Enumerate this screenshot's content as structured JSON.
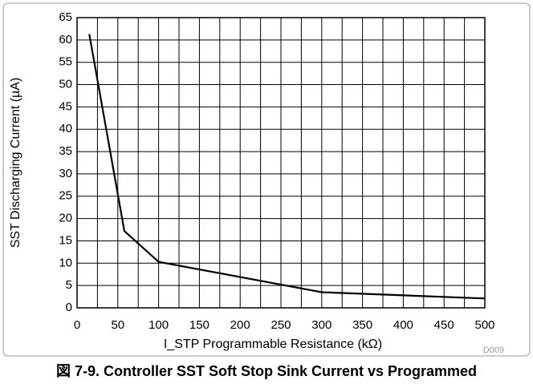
{
  "chart_data": {
    "type": "line",
    "caption": "図 7-9. Controller SST Soft Stop Sink Current vs Programmed",
    "xlabel": "I_STP Programmable Resistance (kΩ)",
    "ylabel": "SST Discharging Current (µA)",
    "code": "D009",
    "x": [
      15,
      58,
      100,
      300,
      500
    ],
    "series": [
      {
        "color": "#000000",
        "values": [
          61.3,
          17.2,
          10.3,
          3.5,
          2.1
        ]
      }
    ],
    "xlim": [
      0,
      500
    ],
    "ylim": [
      0,
      65
    ],
    "xticks": [
      0,
      50,
      100,
      150,
      200,
      250,
      300,
      350,
      400,
      450,
      500
    ],
    "yticks": [
      0,
      5,
      10,
      15,
      20,
      25,
      30,
      35,
      40,
      45,
      50,
      55,
      60,
      65
    ],
    "xgrid_lines": [
      25,
      75,
      125,
      175,
      225,
      275,
      325,
      375,
      425,
      475
    ],
    "grid": true
  }
}
